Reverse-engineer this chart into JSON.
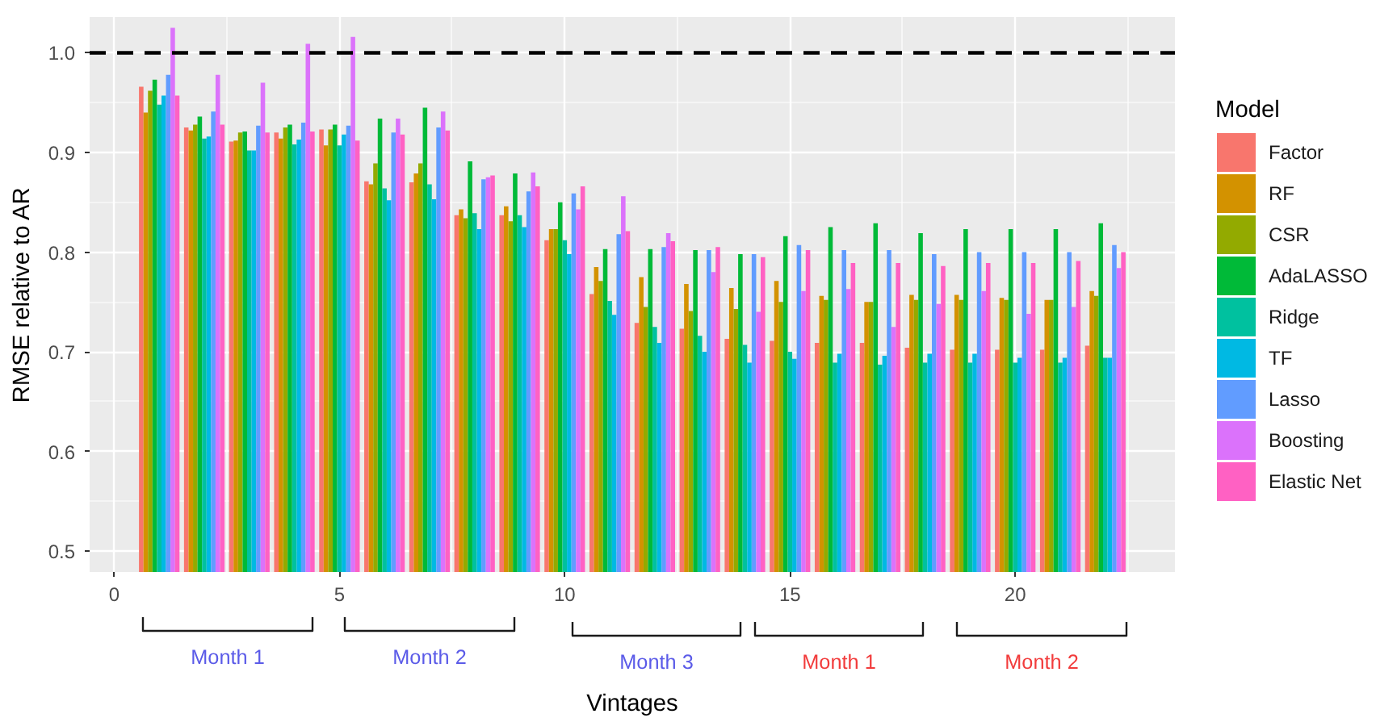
{
  "chart_data": {
    "type": "bar",
    "xlabel": "Vintages",
    "ylabel": "RMSE relative to AR",
    "legend_title": "Model",
    "x": [
      1,
      2,
      3,
      4,
      5,
      6,
      7,
      8,
      9,
      10,
      11,
      12,
      13,
      14,
      15,
      16,
      17,
      18,
      19,
      20,
      21,
      22
    ],
    "xlim": [
      -0.545,
      23.545
    ],
    "xticks": [
      0,
      5,
      10,
      15,
      20
    ],
    "ylim": [
      0.479,
      1.036
    ],
    "yticks": [
      0.5,
      0.6,
      0.7,
      0.8,
      0.9,
      {
        "value": 1,
        "label": "1.0"
      }
    ],
    "grid": true,
    "legend": "right",
    "series": [
      {
        "name": "Factor",
        "color": "#f8766d",
        "values": [
          0.966,
          0.925,
          0.911,
          0.92,
          0.923,
          0.871,
          0.87,
          0.837,
          0.837,
          0.812,
          0.758,
          0.729,
          0.723,
          0.713,
          0.711,
          0.709,
          0.709,
          0.704,
          0.702,
          0.702,
          0.702,
          0.706
        ]
      },
      {
        "name": "RF",
        "color": "#d39200",
        "values": [
          0.94,
          0.922,
          0.912,
          0.914,
          0.907,
          0.868,
          0.879,
          0.843,
          0.846,
          0.823,
          0.785,
          0.775,
          0.768,
          0.764,
          0.771,
          0.756,
          0.75,
          0.757,
          0.757,
          0.754,
          0.752,
          0.761
        ]
      },
      {
        "name": "CSR",
        "color": "#93aa00",
        "values": [
          0.962,
          0.928,
          0.92,
          0.925,
          0.923,
          0.889,
          0.889,
          0.834,
          0.831,
          0.823,
          0.771,
          0.745,
          0.741,
          0.743,
          0.75,
          0.752,
          0.75,
          0.752,
          0.752,
          0.752,
          0.752,
          0.756
        ]
      },
      {
        "name": "AdaLASSO",
        "color": "#00ba38",
        "values": [
          0.973,
          0.936,
          0.921,
          0.928,
          0.928,
          0.934,
          0.945,
          0.891,
          0.879,
          0.85,
          0.803,
          0.803,
          0.802,
          0.798,
          0.816,
          0.825,
          0.829,
          0.819,
          0.823,
          0.823,
          0.823,
          0.829
        ]
      },
      {
        "name": "Ridge",
        "color": "#00c19f",
        "values": [
          0.948,
          0.914,
          0.902,
          0.908,
          0.907,
          0.864,
          0.868,
          0.839,
          0.837,
          0.812,
          0.751,
          0.725,
          0.716,
          0.707,
          0.7,
          0.689,
          0.687,
          0.689,
          0.689,
          0.689,
          0.689,
          0.694
        ]
      },
      {
        "name": "TF",
        "color": "#00b9e3",
        "values": [
          0.957,
          0.916,
          0.902,
          0.913,
          0.918,
          0.852,
          0.853,
          0.823,
          0.825,
          0.798,
          0.737,
          0.709,
          0.7,
          0.689,
          0.693,
          0.698,
          0.696,
          0.698,
          0.698,
          0.694,
          0.694,
          0.694
        ]
      },
      {
        "name": "Lasso",
        "color": "#619cff",
        "values": [
          0.978,
          0.941,
          0.927,
          0.93,
          0.927,
          0.92,
          0.925,
          0.873,
          0.861,
          0.859,
          0.818,
          0.805,
          0.802,
          0.798,
          0.807,
          0.802,
          0.802,
          0.798,
          0.8,
          0.8,
          0.8,
          0.807
        ]
      },
      {
        "name": "Boosting",
        "color": "#db72fb",
        "values": [
          1.025,
          0.978,
          0.97,
          1.009,
          1.016,
          0.934,
          0.941,
          0.875,
          0.88,
          0.843,
          0.856,
          0.819,
          0.78,
          0.74,
          0.761,
          0.763,
          0.725,
          0.748,
          0.761,
          0.738,
          0.745,
          0.784
        ]
      },
      {
        "name": "Elastic Net",
        "color": "#ff61c3",
        "values": [
          0.957,
          0.928,
          0.92,
          0.921,
          0.912,
          0.918,
          0.922,
          0.877,
          0.866,
          0.866,
          0.821,
          0.811,
          0.805,
          0.795,
          0.802,
          0.789,
          0.789,
          0.786,
          0.789,
          0.789,
          0.791,
          0.8
        ]
      }
    ],
    "ref_lines": [
      {
        "axis": "y",
        "value": 1,
        "color": "#000000",
        "line_style": "dashed"
      }
    ],
    "annotations": [
      "Month 1",
      "Month 2",
      "Month 3",
      "Month 1",
      "Month 2"
    ]
  }
}
